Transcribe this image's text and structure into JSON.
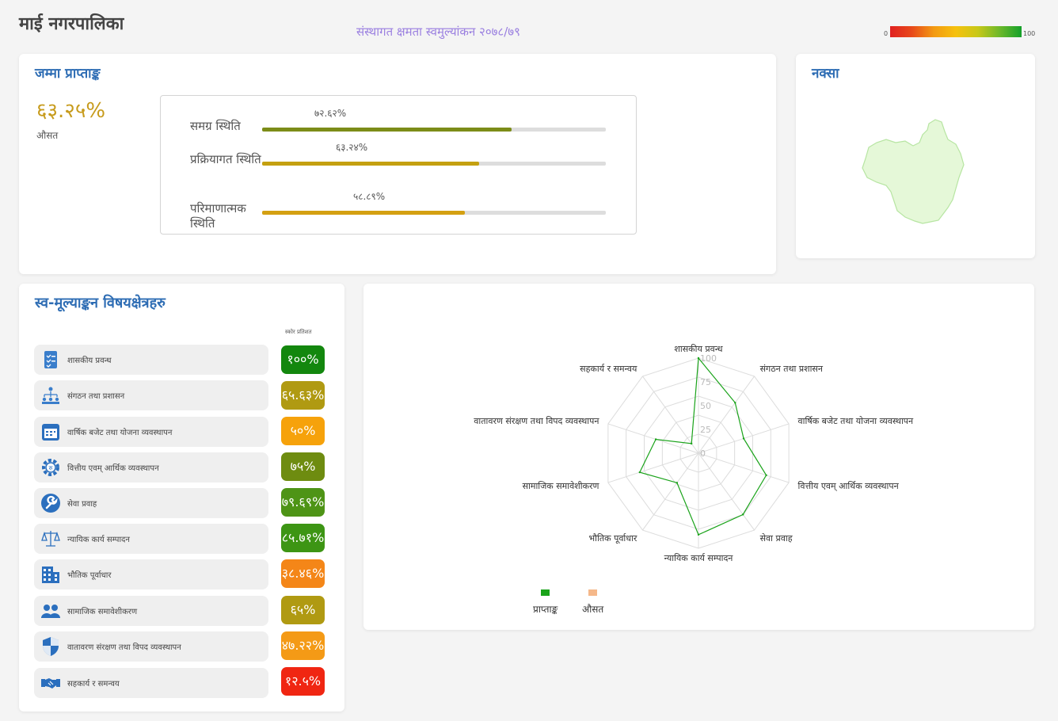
{
  "header": {
    "title": "माई नगरपालिका",
    "subtitle": "संस्थागत क्षमता स्वमुल्यांकन २०७८/७९",
    "scale_min": "0",
    "scale_max": "100"
  },
  "total": {
    "title": "जम्मा प्राप्ताङ्क",
    "percent": "६३.२५%",
    "sub": "औसत",
    "rows": [
      {
        "label": "समग्र स्थिति",
        "value": "७२.६२%",
        "fraction": 0.7262,
        "color": "#7c8c18"
      },
      {
        "label": "प्रक्रियागत स्थिति",
        "value": "६३.२४%",
        "fraction": 0.6324,
        "color": "#c4a010"
      },
      {
        "label": "परिमाणात्मक स्थिति",
        "value": "५८.८९%",
        "fraction": 0.5889,
        "color": "#d4a012"
      }
    ]
  },
  "map": {
    "title": "नक्सा"
  },
  "domains": {
    "title": "स्व-मूल्याङ्कन विषयक्षेत्रहरु",
    "score_header": "स्कोर प्रतिशत",
    "items": [
      {
        "label": "शासकीय प्रवन्ध",
        "score": "१००%",
        "color": "#13870e",
        "icon": "checklist-icon"
      },
      {
        "label": "संगठन तथा प्रशासन",
        "score": "६५.६३%",
        "color": "#b09a12",
        "icon": "org-chart-icon"
      },
      {
        "label": "वार्षिक बजेट तथा योजना व्यवस्थापन",
        "score": "५०%",
        "color": "#f6a20b",
        "icon": "calendar-icon"
      },
      {
        "label": "वित्तीय एवम् आर्थिक व्यवस्थापन",
        "score": "७५%",
        "color": "#6e8c10",
        "icon": "finance-gear-icon"
      },
      {
        "label": "सेवा प्रवाह",
        "score": "७९.६९%",
        "color": "#4e9416",
        "icon": "wrench-icon"
      },
      {
        "label": "न्यायिक कार्य सम्पादन",
        "score": "८५.७१%",
        "color": "#3d9514",
        "icon": "scales-icon"
      },
      {
        "label": "भौतिक पूर्वाधार",
        "score": "३८.४६%",
        "color": "#f48618",
        "icon": "building-icon"
      },
      {
        "label": "सामाजिक समावेशीकरण",
        "score": "६५%",
        "color": "#b09a12",
        "icon": "people-icon"
      },
      {
        "label": "वातावरण संरक्षण तथा विपद व्यवस्थापन",
        "score": "४७.२२%",
        "color": "#f49a16",
        "icon": "shield-icon"
      },
      {
        "label": "सहकार्य र समन्वय",
        "score": "१२.५%",
        "color": "#f02612",
        "icon": "handshake-icon"
      }
    ]
  },
  "chart_data": {
    "type": "radar",
    "axes": [
      "शासकीय प्रवन्ध",
      "संगठन तथा प्रशासन",
      "वार्षिक बजेट तथा योजना व्यवस्थापन",
      "वित्तीय एवम् आर्थिक व्यवस्थापन",
      "सेवा प्रवाह",
      "न्यायिक कार्य सम्पादन",
      "भौतिक पूर्वाधार",
      "सामाजिक समावेशीकरण",
      "वातावरण संरक्षण तथा विपद व्यवस्थापन",
      "सहकार्य र समन्वय"
    ],
    "ticks": [
      "0",
      "25",
      "50",
      "75",
      "100"
    ],
    "rmax": 100,
    "series": [
      {
        "name": "प्राप्ताङ्क",
        "color": "#1aa31a",
        "values": [
          100,
          65.63,
          50,
          75,
          79.69,
          85.71,
          38.46,
          65,
          47.22,
          12.5
        ]
      },
      {
        "name": "औसत",
        "color": "#f5b88a",
        "values": []
      }
    ],
    "legend_position": "bottom-left"
  }
}
